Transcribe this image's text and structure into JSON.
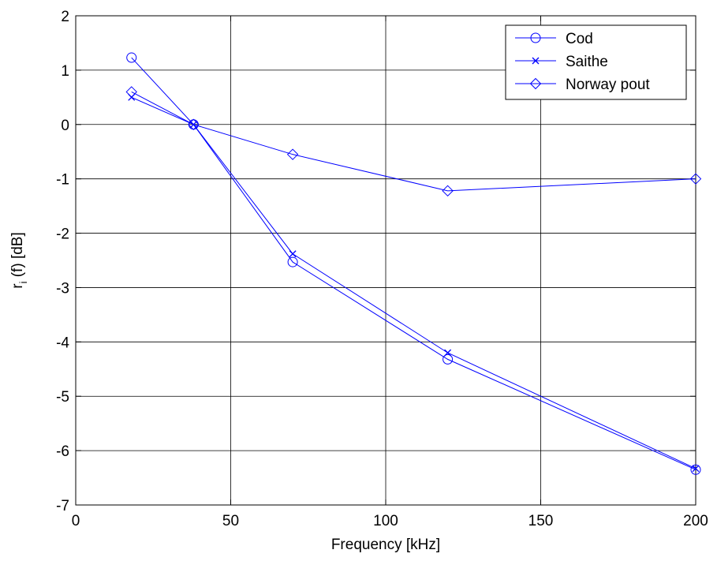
{
  "chart_data": {
    "type": "line",
    "xlabel": "Frequency [kHz]",
    "ylabel_main": "r",
    "ylabel_sub": "i",
    "ylabel_rest": " (f) [dB]",
    "xlim": [
      0,
      200
    ],
    "ylim": [
      -7,
      2
    ],
    "xticks": [
      0,
      50,
      100,
      150,
      200
    ],
    "yticks": [
      2,
      1,
      0,
      -1,
      -2,
      -3,
      -4,
      -5,
      -6,
      -7
    ],
    "grid": true,
    "legend_position": "top-right",
    "x": [
      18,
      38,
      70,
      120,
      200
    ],
    "series": [
      {
        "name": "Cod",
        "marker": "circle",
        "color": "#0000ff",
        "values": [
          1.23,
          0.0,
          -2.53,
          -4.32,
          -6.35
        ]
      },
      {
        "name": "Saithe",
        "marker": "x",
        "color": "#0000ff",
        "values": [
          0.5,
          0.0,
          -2.38,
          -4.2,
          -6.33
        ]
      },
      {
        "name": "Norway pout",
        "marker": "diamond",
        "color": "#0000ff",
        "values": [
          0.6,
          0.0,
          -0.55,
          -1.22,
          -1.0
        ]
      }
    ]
  }
}
